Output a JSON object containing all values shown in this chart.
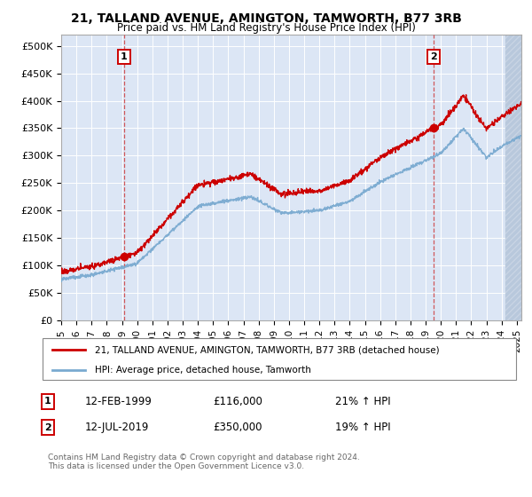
{
  "title": "21, TALLAND AVENUE, AMINGTON, TAMWORTH, B77 3RB",
  "subtitle": "Price paid vs. HM Land Registry's House Price Index (HPI)",
  "background_color": "#ffffff",
  "plot_bg_color": "#dce6f5",
  "hatch_color": "#b8c8dc",
  "grid_color": "#ffffff",
  "red_line_color": "#cc0000",
  "blue_line_color": "#7aaad0",
  "sale1_date": 1999.12,
  "sale1_price": 116000,
  "sale1_label": "1",
  "sale2_date": 2019.54,
  "sale2_price": 350000,
  "sale2_label": "2",
  "xmin": 1995.0,
  "xmax": 2025.3,
  "ymin": 0,
  "ymax": 520000,
  "yticks": [
    0,
    50000,
    100000,
    150000,
    200000,
    250000,
    300000,
    350000,
    400000,
    450000,
    500000
  ],
  "ytick_labels": [
    "£0",
    "£50K",
    "£100K",
    "£150K",
    "£200K",
    "£250K",
    "£300K",
    "£350K",
    "£400K",
    "£450K",
    "£500K"
  ],
  "xtick_years": [
    1995,
    1996,
    1997,
    1998,
    1999,
    2000,
    2001,
    2002,
    2003,
    2004,
    2005,
    2006,
    2007,
    2008,
    2009,
    2010,
    2011,
    2012,
    2013,
    2014,
    2015,
    2016,
    2017,
    2018,
    2019,
    2020,
    2021,
    2022,
    2023,
    2024,
    2025
  ],
  "legend_label_red": "21, TALLAND AVENUE, AMINGTON, TAMWORTH, B77 3RB (detached house)",
  "legend_label_blue": "HPI: Average price, detached house, Tamworth",
  "annotation1_date": "12-FEB-1999",
  "annotation1_price": "£116,000",
  "annotation1_hpi": "21% ↑ HPI",
  "annotation2_date": "12-JUL-2019",
  "annotation2_price": "£350,000",
  "annotation2_hpi": "19% ↑ HPI",
  "footer": "Contains HM Land Registry data © Crown copyright and database right 2024.\nThis data is licensed under the Open Government Licence v3.0.",
  "hatch_xstart": 2024.25
}
